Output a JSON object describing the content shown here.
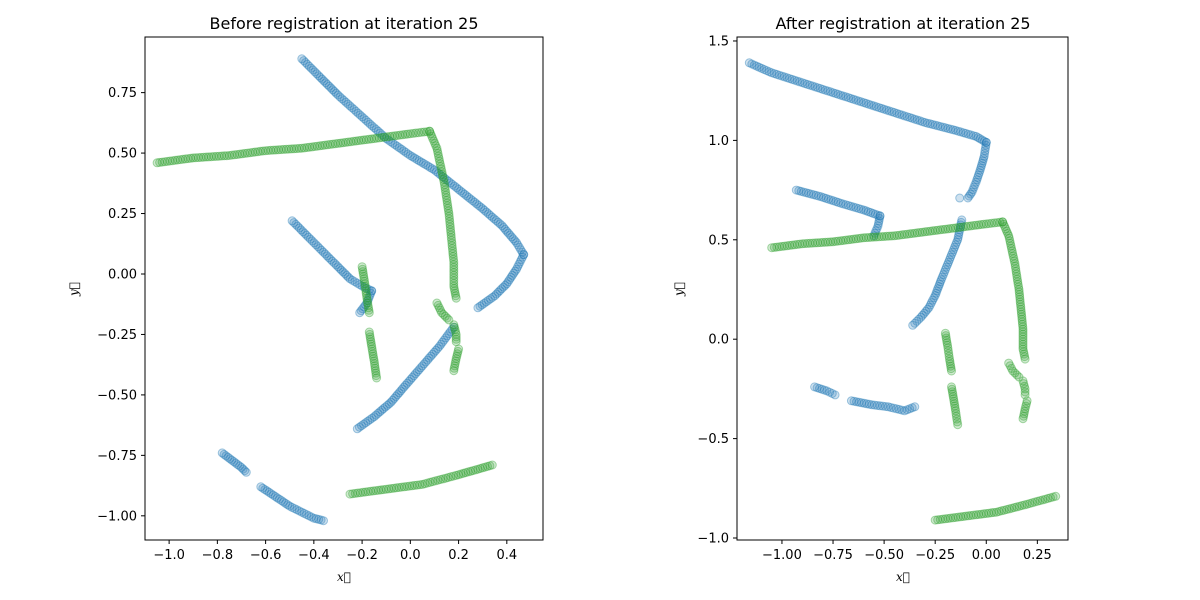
{
  "colors": {
    "source": "#1f77b4",
    "target": "#2ca02c",
    "background": "#ffffff",
    "axes": "#000000"
  },
  "chart_data": [
    {
      "type": "scatter",
      "title": "Before registration at iteration 25",
      "xlabel": "x⃗",
      "ylabel": "y⃗",
      "xlim": [
        -1.1,
        0.55
      ],
      "ylim": [
        -1.1,
        0.98
      ],
      "xticks": [
        -1.0,
        -0.8,
        -0.6,
        -0.4,
        -0.2,
        0.0,
        0.2,
        0.4
      ],
      "xtick_labels": [
        "−1.0",
        "−0.8",
        "−0.6",
        "−0.4",
        "−0.2",
        "0.0",
        "0.2",
        "0.4"
      ],
      "yticks": [
        -1.0,
        -0.75,
        -0.5,
        -0.25,
        0.0,
        0.25,
        0.5,
        0.75
      ],
      "ytick_labels": [
        "−1.00",
        "−0.75",
        "−0.50",
        "−0.25",
        "0.00",
        "0.25",
        "0.50",
        "0.75"
      ],
      "grid": false,
      "series": [
        {
          "color": "#1f77b4",
          "segments": [
            [
              [
                -0.45,
                0.89
              ],
              [
                -0.38,
                0.82
              ],
              [
                -0.3,
                0.74
              ],
              [
                -0.2,
                0.65
              ],
              [
                -0.1,
                0.56
              ],
              [
                0.0,
                0.49
              ],
              [
                0.1,
                0.43
              ],
              [
                0.2,
                0.35
              ],
              [
                0.3,
                0.27
              ],
              [
                0.38,
                0.2
              ],
              [
                0.44,
                0.13
              ],
              [
                0.47,
                0.08
              ]
            ],
            [
              [
                0.47,
                0.08
              ],
              [
                0.44,
                0.02
              ],
              [
                0.4,
                -0.04
              ],
              [
                0.35,
                -0.09
              ],
              [
                0.28,
                -0.14
              ]
            ],
            [
              [
                -0.49,
                0.22
              ],
              [
                -0.43,
                0.16
              ],
              [
                -0.36,
                0.09
              ],
              [
                -0.3,
                0.03
              ],
              [
                -0.25,
                -0.02
              ],
              [
                -0.2,
                -0.05
              ],
              [
                -0.16,
                -0.07
              ]
            ],
            [
              [
                -0.16,
                -0.07
              ],
              [
                -0.18,
                -0.12
              ],
              [
                -0.21,
                -0.16
              ]
            ],
            [
              [
                0.18,
                -0.22
              ],
              [
                0.12,
                -0.3
              ],
              [
                0.05,
                -0.38
              ],
              [
                -0.02,
                -0.46
              ],
              [
                -0.08,
                -0.53
              ],
              [
                -0.15,
                -0.59
              ],
              [
                -0.22,
                -0.64
              ]
            ],
            [
              [
                -0.78,
                -0.74
              ],
              [
                -0.74,
                -0.77
              ],
              [
                -0.7,
                -0.8
              ],
              [
                -0.68,
                -0.82
              ]
            ],
            [
              [
                -0.62,
                -0.88
              ],
              [
                -0.56,
                -0.92
              ],
              [
                -0.5,
                -0.96
              ],
              [
                -0.44,
                -0.99
              ],
              [
                -0.4,
                -1.01
              ],
              [
                -0.36,
                -1.02
              ]
            ]
          ]
        },
        {
          "color": "#2ca02c",
          "segments": [
            [
              [
                -1.05,
                0.46
              ],
              [
                -0.9,
                0.48
              ],
              [
                -0.75,
                0.49
              ],
              [
                -0.6,
                0.51
              ],
              [
                -0.45,
                0.52
              ],
              [
                -0.3,
                0.54
              ],
              [
                -0.15,
                0.56
              ],
              [
                0.0,
                0.58
              ],
              [
                0.08,
                0.59
              ]
            ],
            [
              [
                0.08,
                0.59
              ],
              [
                0.11,
                0.52
              ],
              [
                0.14,
                0.38
              ],
              [
                0.16,
                0.25
              ],
              [
                0.17,
                0.15
              ],
              [
                0.18,
                0.05
              ],
              [
                0.18,
                -0.05
              ],
              [
                0.19,
                -0.1
              ]
            ],
            [
              [
                0.11,
                -0.12
              ],
              [
                0.13,
                -0.16
              ],
              [
                0.16,
                -0.19
              ]
            ],
            [
              [
                0.18,
                -0.21
              ],
              [
                0.19,
                -0.25
              ],
              [
                0.19,
                -0.28
              ]
            ],
            [
              [
                0.2,
                -0.31
              ],
              [
                0.19,
                -0.35
              ],
              [
                0.18,
                -0.4
              ]
            ],
            [
              [
                -0.2,
                0.03
              ],
              [
                -0.19,
                -0.03
              ],
              [
                -0.18,
                -0.1
              ],
              [
                -0.17,
                -0.16
              ]
            ],
            [
              [
                -0.17,
                -0.24
              ],
              [
                -0.16,
                -0.3
              ],
              [
                -0.15,
                -0.36
              ],
              [
                -0.14,
                -0.43
              ]
            ],
            [
              [
                -0.25,
                -0.91
              ],
              [
                -0.1,
                -0.89
              ],
              [
                0.05,
                -0.87
              ],
              [
                0.2,
                -0.83
              ],
              [
                0.34,
                -0.79
              ]
            ]
          ]
        }
      ]
    },
    {
      "type": "scatter",
      "title": "After registration at iteration 25",
      "xlabel": "x⃗",
      "ylabel": "y⃗",
      "xlim": [
        -1.22,
        0.4
      ],
      "ylim": [
        -1.01,
        1.52
      ],
      "xticks": [
        -1.0,
        -0.75,
        -0.5,
        -0.25,
        0.0,
        0.25
      ],
      "xtick_labels": [
        "−1.00",
        "−0.75",
        "−0.50",
        "−0.25",
        "0.00",
        "0.25"
      ],
      "yticks": [
        -1.0,
        -0.5,
        0.0,
        0.5,
        1.0,
        1.5
      ],
      "ytick_labels": [
        "−1.0",
        "−0.5",
        "0.0",
        "0.5",
        "1.0",
        "1.5"
      ],
      "grid": false,
      "series": [
        {
          "color": "#1f77b4",
          "segments": [
            [
              [
                -1.16,
                1.39
              ],
              [
                -1.05,
                1.34
              ],
              [
                -0.9,
                1.29
              ],
              [
                -0.75,
                1.24
              ],
              [
                -0.6,
                1.19
              ],
              [
                -0.45,
                1.14
              ],
              [
                -0.3,
                1.09
              ],
              [
                -0.15,
                1.05
              ],
              [
                -0.05,
                1.02
              ],
              [
                0.0,
                0.99
              ]
            ],
            [
              [
                0.0,
                0.99
              ],
              [
                -0.01,
                0.92
              ],
              [
                -0.03,
                0.85
              ],
              [
                -0.05,
                0.79
              ],
              [
                -0.07,
                0.74
              ],
              [
                -0.09,
                0.71
              ]
            ],
            [
              [
                -0.13,
                0.71
              ]
            ],
            [
              [
                -0.93,
                0.75
              ],
              [
                -0.82,
                0.72
              ],
              [
                -0.7,
                0.68
              ],
              [
                -0.6,
                0.65
              ],
              [
                -0.52,
                0.62
              ]
            ],
            [
              [
                -0.52,
                0.62
              ],
              [
                -0.53,
                0.57
              ],
              [
                -0.55,
                0.52
              ]
            ],
            [
              [
                -0.12,
                0.6
              ],
              [
                -0.14,
                0.5
              ],
              [
                -0.18,
                0.4
              ],
              [
                -0.22,
                0.3
              ],
              [
                -0.25,
                0.22
              ],
              [
                -0.28,
                0.16
              ],
              [
                -0.32,
                0.11
              ],
              [
                -0.36,
                0.07
              ]
            ],
            [
              [
                -0.84,
                -0.24
              ],
              [
                -0.78,
                -0.26
              ],
              [
                -0.74,
                -0.28
              ]
            ],
            [
              [
                -0.66,
                -0.31
              ],
              [
                -0.56,
                -0.33
              ],
              [
                -0.48,
                -0.34
              ],
              [
                -0.4,
                -0.36
              ],
              [
                -0.35,
                -0.34
              ]
            ]
          ]
        },
        {
          "color": "#2ca02c",
          "segments": [
            [
              [
                -1.05,
                0.46
              ],
              [
                -0.9,
                0.48
              ],
              [
                -0.75,
                0.49
              ],
              [
                -0.6,
                0.51
              ],
              [
                -0.45,
                0.52
              ],
              [
                -0.3,
                0.54
              ],
              [
                -0.15,
                0.56
              ],
              [
                0.0,
                0.58
              ],
              [
                0.08,
                0.59
              ]
            ],
            [
              [
                0.08,
                0.59
              ],
              [
                0.11,
                0.52
              ],
              [
                0.14,
                0.38
              ],
              [
                0.16,
                0.25
              ],
              [
                0.17,
                0.15
              ],
              [
                0.18,
                0.05
              ],
              [
                0.18,
                -0.05
              ],
              [
                0.19,
                -0.1
              ]
            ],
            [
              [
                0.11,
                -0.12
              ],
              [
                0.13,
                -0.16
              ],
              [
                0.16,
                -0.19
              ]
            ],
            [
              [
                0.18,
                -0.21
              ],
              [
                0.19,
                -0.25
              ],
              [
                0.19,
                -0.28
              ]
            ],
            [
              [
                0.2,
                -0.31
              ],
              [
                0.19,
                -0.35
              ],
              [
                0.18,
                -0.4
              ]
            ],
            [
              [
                -0.2,
                0.03
              ],
              [
                -0.19,
                -0.03
              ],
              [
                -0.18,
                -0.1
              ],
              [
                -0.17,
                -0.16
              ]
            ],
            [
              [
                -0.17,
                -0.24
              ],
              [
                -0.16,
                -0.3
              ],
              [
                -0.15,
                -0.36
              ],
              [
                -0.14,
                -0.43
              ]
            ],
            [
              [
                -0.25,
                -0.91
              ],
              [
                -0.1,
                -0.89
              ],
              [
                0.05,
                -0.87
              ],
              [
                0.2,
                -0.83
              ],
              [
                0.34,
                -0.79
              ]
            ]
          ]
        }
      ]
    }
  ]
}
